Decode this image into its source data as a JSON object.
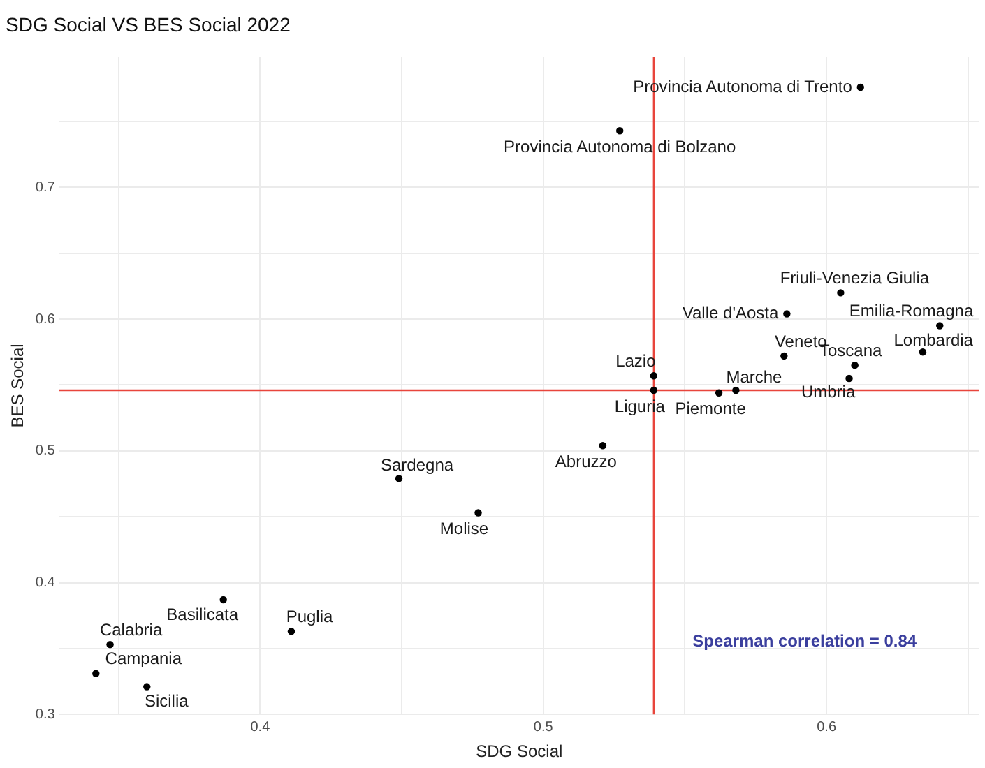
{
  "chart_data": {
    "type": "scatter",
    "title": "SDG Social VS BES Social 2022",
    "xlabel": "SDG Social",
    "ylabel": "BES Social",
    "xlim": [
      0.329,
      0.654
    ],
    "ylim": [
      0.3,
      0.799
    ],
    "xticks": [
      {
        "value": 0.35,
        "label": null
      },
      0.4,
      {
        "value": 0.45,
        "label": null
      },
      0.5,
      {
        "value": 0.55,
        "label": null
      },
      0.6,
      {
        "value": 0.65,
        "label": null
      }
    ],
    "yticks": [
      0.3,
      {
        "value": 0.35,
        "label": null
      },
      0.4,
      {
        "value": 0.45,
        "label": null
      },
      0.5,
      {
        "value": 0.55,
        "label": null
      },
      0.6,
      {
        "value": 0.65,
        "label": null
      },
      0.7,
      {
        "value": 0.75,
        "label": null
      }
    ],
    "grid": true,
    "legend": false,
    "marker": "circle",
    "ref_lines": [
      {
        "axis": "x",
        "value": 0.539,
        "color": "#e8453c"
      },
      {
        "axis": "y",
        "value": 0.546,
        "color": "#e8453c"
      }
    ],
    "annotations": [
      "Spearman correlation = 0.84"
    ],
    "series": [
      {
        "name": "Provincia Autonoma di Trento",
        "color": "#000000",
        "x": [
          0.612
        ],
        "values": [
          0.776
        ]
      },
      {
        "name": "Provincia Autonoma di Bolzano",
        "color": "#000000",
        "x": [
          0.527
        ],
        "values": [
          0.743
        ]
      },
      {
        "name": "Friuli-Venezia Giulia",
        "color": "#000000",
        "x": [
          0.605
        ],
        "values": [
          0.62
        ]
      },
      {
        "name": "Valle d'Aosta",
        "color": "#000000",
        "x": [
          0.586
        ],
        "values": [
          0.604
        ]
      },
      {
        "name": "Emilia-Romagna",
        "color": "#000000",
        "x": [
          0.64
        ],
        "values": [
          0.595
        ]
      },
      {
        "name": "Lombardia",
        "color": "#000000",
        "x": [
          0.634
        ],
        "values": [
          0.575
        ]
      },
      {
        "name": "Veneto",
        "color": "#000000",
        "x": [
          0.585
        ],
        "values": [
          0.572
        ]
      },
      {
        "name": "Toscana",
        "color": "#000000",
        "x": [
          0.61
        ],
        "values": [
          0.565
        ]
      },
      {
        "name": "Umbria",
        "color": "#000000",
        "x": [
          0.608
        ],
        "values": [
          0.555
        ]
      },
      {
        "name": "Lazio",
        "color": "#000000",
        "x": [
          0.539
        ],
        "values": [
          0.557
        ]
      },
      {
        "name": "Liguria",
        "color": "#000000",
        "x": [
          0.539
        ],
        "values": [
          0.546
        ]
      },
      {
        "name": "Marche",
        "color": "#000000",
        "x": [
          0.568
        ],
        "values": [
          0.546
        ]
      },
      {
        "name": "Piemonte",
        "color": "#000000",
        "x": [
          0.562
        ],
        "values": [
          0.544
        ]
      },
      {
        "name": "Abruzzo",
        "color": "#000000",
        "x": [
          0.521
        ],
        "values": [
          0.504
        ]
      },
      {
        "name": "Sardegna",
        "color": "#000000",
        "x": [
          0.449
        ],
        "values": [
          0.479
        ]
      },
      {
        "name": "Molise",
        "color": "#000000",
        "x": [
          0.477
        ],
        "values": [
          0.453
        ]
      },
      {
        "name": "Basilicata",
        "color": "#000000",
        "x": [
          0.387
        ],
        "values": [
          0.387
        ]
      },
      {
        "name": "Puglia",
        "color": "#000000",
        "x": [
          0.411
        ],
        "values": [
          0.363
        ]
      },
      {
        "name": "Calabria",
        "color": "#000000",
        "x": [
          0.347
        ],
        "values": [
          0.353
        ]
      },
      {
        "name": "Campania",
        "color": "#000000",
        "x": [
          0.342
        ],
        "values": [
          0.331
        ]
      },
      {
        "name": "Sicilia",
        "color": "#000000",
        "x": [
          0.36
        ],
        "values": [
          0.321
        ]
      }
    ]
  }
}
